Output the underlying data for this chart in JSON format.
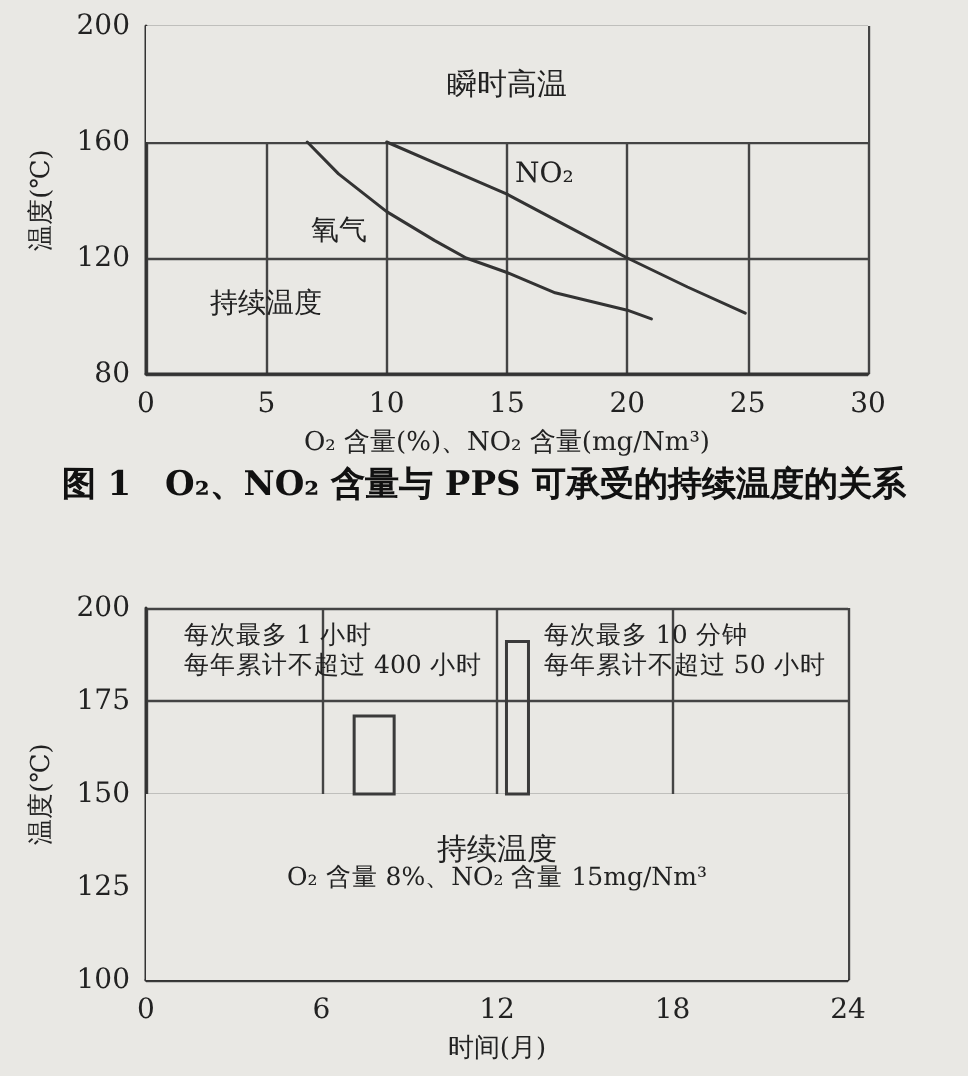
{
  "chart_data": [
    {
      "type": "line",
      "title": "图 1　O₂、NO₂ 含量与 PPS 可承受的持续温度的关系",
      "xlabel": "O₂ 含量(%)、NO₂ 含量(mg/Nm³)",
      "ylabel": "温度(℃)",
      "series": [
        {
          "name": "氧气",
          "color": "#333333",
          "x": [
            6.7,
            8,
            10,
            12,
            13.3,
            15,
            17,
            20,
            21
          ],
          "values": [
            160,
            149,
            136,
            126,
            120,
            115,
            108,
            102,
            99
          ]
        },
        {
          "name": "NO₂",
          "color": "#333333",
          "x": [
            10,
            12.5,
            15,
            17.5,
            20,
            22.5,
            24.9
          ],
          "values": [
            160,
            151,
            142,
            131,
            120,
            110,
            101
          ]
        }
      ],
      "xlim": [
        0,
        30
      ],
      "xticks": [
        0,
        5,
        10,
        15,
        20,
        25,
        30
      ],
      "ylim": [
        80,
        200
      ],
      "yticks": [
        80,
        120,
        160,
        200
      ],
      "grid": true,
      "marker": "none",
      "line_style": "solid",
      "bands": [
        {
          "axis": "y",
          "from": 160,
          "to": 200,
          "label": "瞬时高温",
          "color": "#e9e8e4"
        }
      ],
      "annotations": [
        "持续温度"
      ]
    },
    {
      "type": "bar",
      "xlabel": "时间(月)",
      "ylabel": "温度(℃)",
      "series": [
        {
          "color": "#3a3a3a",
          "x": [
            7.8
          ],
          "values": [
            21
          ],
          "base": [
            150
          ]
        },
        {
          "color": "#3a3a3a",
          "x": [
            12.7
          ],
          "values": [
            41
          ],
          "base": [
            150
          ]
        }
      ],
      "xlim": [
        0,
        24
      ],
      "xticks": [
        0,
        6,
        12,
        18,
        24
      ],
      "ylim": [
        100,
        200
      ],
      "yticks": [
        100,
        125,
        150,
        175,
        200
      ],
      "grid": true,
      "bands": [
        {
          "axis": "y",
          "from": 100,
          "to": 150,
          "label": "持续温度",
          "color": "#e9e8e4"
        }
      ],
      "annotations": [
        "每次最多 1 小时",
        "每年累计不超过 400 小时",
        "每次最多 10 分钟",
        "每年累计不超过 50 小时",
        "O₂ 含量 8%、NO₂ 含量 15mg/Nm³"
      ]
    }
  ]
}
